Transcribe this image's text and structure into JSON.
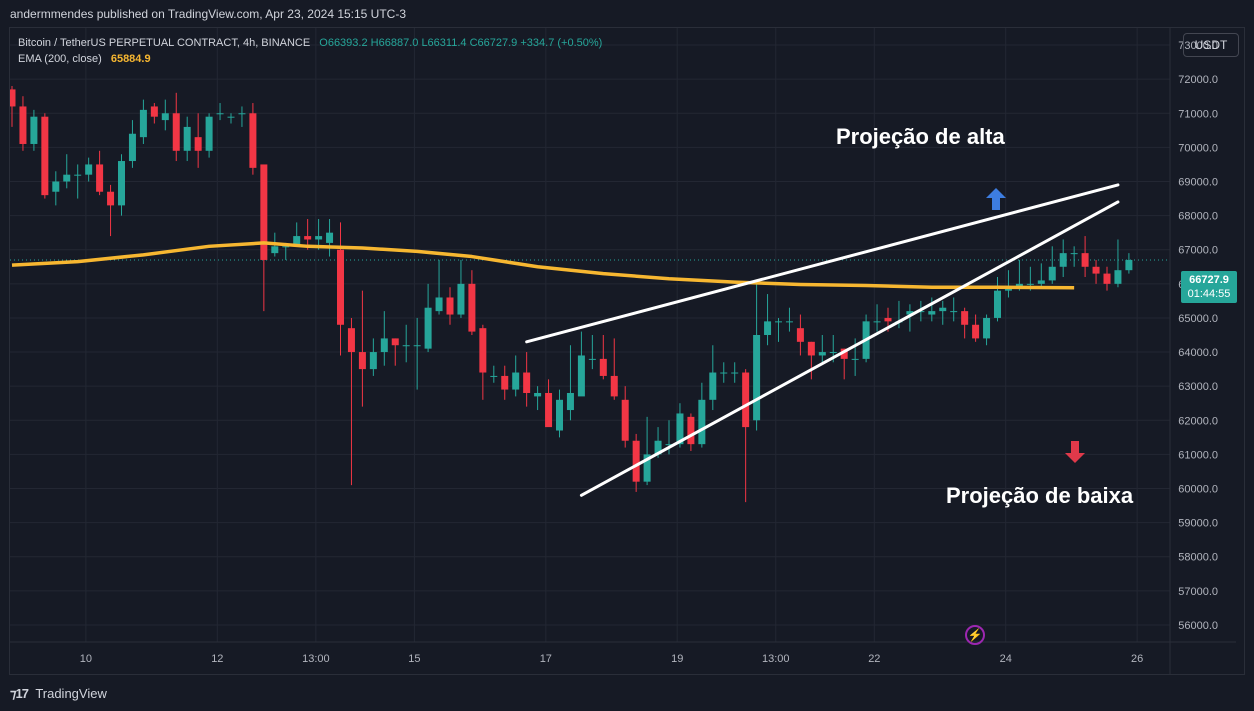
{
  "header": {
    "publisher_line": "andermmendes published on TradingView.com, Apr 23, 2024 15:15 UTC-3"
  },
  "legend": {
    "symbol": "Bitcoin / TetherUS PERPETUAL CONTRACT, 4h, BINANCE",
    "open": "O66393.2",
    "high": "H66887.0",
    "low": "L66311.4",
    "close": "C66727.9",
    "change": "+334.7 (+0.50%)",
    "ema_label": "EMA (200, close)",
    "ema_value": "65884.9"
  },
  "currency_button": "USDT",
  "last_price": {
    "price": "66727.9",
    "countdown": "01:44:55"
  },
  "annotations": {
    "bullish": "Projeção de alta",
    "bearish": "Projeção de baixa"
  },
  "footer": {
    "brand": "TradingView"
  },
  "colors": {
    "up": "#26a69a",
    "down": "#f23645",
    "ema": "#f7b731",
    "background": "#161a25",
    "grid": "#232733",
    "bull_arrow": "#3d7de0",
    "bear_arrow": "#e0394a"
  },
  "chart_data": {
    "type": "candlestick",
    "y_axis": {
      "min": 55500,
      "max": 73500,
      "ticks": [
        "73000.0",
        "72000.0",
        "71000.0",
        "70000.0",
        "69000.0",
        "68000.0",
        "67000.0",
        "66000.0",
        "65000.0",
        "64000.0",
        "63000.0",
        "62000.0",
        "61000.0",
        "60000.0",
        "59000.0",
        "58000.0",
        "57000.0",
        "56000.0"
      ]
    },
    "x_axis": {
      "ticks": [
        {
          "label": "10",
          "index": 6.75
        },
        {
          "label": "12",
          "index": 18.75
        },
        {
          "label": "13:00",
          "index": 27.75
        },
        {
          "label": "15",
          "index": 36.75
        },
        {
          "label": "17",
          "index": 48.75
        },
        {
          "label": "19",
          "index": 60.75
        },
        {
          "label": "13:00",
          "index": 69.75
        },
        {
          "label": "22",
          "index": 78.75
        },
        {
          "label": "24",
          "index": 90.75
        },
        {
          "label": "26",
          "index": 102.75
        }
      ]
    },
    "candles": [
      [
        71700,
        71200,
        71800,
        70600
      ],
      [
        71200,
        70100,
        71500,
        69900
      ],
      [
        70100,
        70900,
        71100,
        69900
      ],
      [
        70900,
        68600,
        71000,
        68500
      ],
      [
        68700,
        69000,
        69300,
        68300
      ],
      [
        69000,
        69200,
        69800,
        68800
      ],
      [
        69200,
        69200,
        69500,
        68500
      ],
      [
        69200,
        69500,
        69700,
        69000
      ],
      [
        69500,
        68700,
        69900,
        68600
      ],
      [
        68700,
        68300,
        68900,
        67400
      ],
      [
        68300,
        69600,
        69800,
        68000
      ],
      [
        69600,
        70400,
        70800,
        69400
      ],
      [
        70300,
        71100,
        71400,
        70100
      ],
      [
        71200,
        70900,
        71300,
        70700
      ],
      [
        70800,
        71000,
        71400,
        70500
      ],
      [
        71000,
        69900,
        71600,
        69600
      ],
      [
        69900,
        70600,
        70900,
        69600
      ],
      [
        70300,
        69900,
        71000,
        69400
      ],
      [
        69900,
        70900,
        71000,
        69700
      ],
      [
        71000,
        71000,
        71300,
        70800
      ],
      [
        70900,
        70900,
        71000,
        70700
      ],
      [
        71000,
        71000,
        71200,
        70600
      ],
      [
        71000,
        69400,
        71300,
        69200
      ],
      [
        69500,
        66700,
        69500,
        65200
      ],
      [
        66900,
        67100,
        67500,
        66800
      ],
      [
        67100,
        67100,
        67200,
        66700
      ],
      [
        67100,
        67400,
        67800,
        67100
      ],
      [
        67400,
        67300,
        67900,
        67000
      ],
      [
        67300,
        67400,
        67900,
        67000
      ],
      [
        67200,
        67500,
        67900,
        66800
      ],
      [
        67000,
        64800,
        67800,
        63900
      ],
      [
        64700,
        64000,
        65000,
        60100
      ],
      [
        64000,
        63500,
        65800,
        62400
      ],
      [
        63500,
        64000,
        64400,
        63300
      ],
      [
        64000,
        64400,
        65200,
        63600
      ],
      [
        64400,
        64200,
        64400,
        63600
      ],
      [
        64200,
        64200,
        64800,
        63700
      ],
      [
        64200,
        64200,
        65000,
        62900
      ],
      [
        64100,
        65300,
        66000,
        64000
      ],
      [
        65200,
        65600,
        66700,
        65100
      ],
      [
        65600,
        65100,
        65900,
        64800
      ],
      [
        65100,
        66000,
        66700,
        65000
      ],
      [
        66000,
        64600,
        66400,
        64500
      ],
      [
        64700,
        63400,
        64800,
        62600
      ],
      [
        63300,
        63300,
        63600,
        63100
      ],
      [
        63300,
        62900,
        63600,
        62600
      ],
      [
        62900,
        63400,
        63900,
        62700
      ],
      [
        63400,
        62800,
        64000,
        62400
      ],
      [
        62700,
        62800,
        63000,
        62300
      ],
      [
        62800,
        61800,
        63200,
        61900
      ],
      [
        61700,
        62600,
        62900,
        61500
      ],
      [
        62300,
        62800,
        64200,
        62000
      ],
      [
        62700,
        63900,
        64600,
        63800
      ],
      [
        63800,
        63800,
        64500,
        63500
      ],
      [
        63800,
        63300,
        64500,
        63200
      ],
      [
        63300,
        62700,
        64400,
        62600
      ],
      [
        62600,
        61400,
        63000,
        61200
      ],
      [
        61400,
        60200,
        61600,
        59900
      ],
      [
        60200,
        61000,
        62100,
        60100
      ],
      [
        61000,
        61400,
        61800,
        60900
      ],
      [
        61300,
        61300,
        62000,
        61000
      ],
      [
        61300,
        62200,
        62500,
        61200
      ],
      [
        62100,
        61300,
        62200,
        61100
      ],
      [
        61300,
        62600,
        63100,
        61200
      ],
      [
        62600,
        63400,
        64200,
        62300
      ],
      [
        63400,
        63400,
        63700,
        63100
      ],
      [
        63400,
        63400,
        63700,
        63100
      ],
      [
        63400,
        61800,
        63500,
        59600
      ],
      [
        62000,
        64500,
        66000,
        61700
      ],
      [
        64500,
        64900,
        65700,
        64200
      ],
      [
        64900,
        64900,
        65000,
        64300
      ],
      [
        64900,
        64900,
        65300,
        64600
      ],
      [
        64700,
        64300,
        65100,
        63900
      ],
      [
        64300,
        63900,
        64300,
        63200
      ],
      [
        63900,
        64000,
        64500,
        63700
      ],
      [
        64000,
        64000,
        64500,
        63700
      ],
      [
        64100,
        63800,
        64100,
        63200
      ],
      [
        63800,
        63800,
        64400,
        63300
      ],
      [
        63800,
        64900,
        65100,
        63700
      ],
      [
        64900,
        64900,
        65400,
        64600
      ],
      [
        65000,
        64900,
        65300,
        64600
      ],
      [
        64900,
        64900,
        65500,
        64700
      ],
      [
        65100,
        65200,
        65400,
        64600
      ],
      [
        65200,
        65200,
        65500,
        64900
      ],
      [
        65100,
        65200,
        65600,
        64900
      ],
      [
        65200,
        65300,
        65500,
        64800
      ],
      [
        65200,
        65200,
        65600,
        64900
      ],
      [
        65200,
        64800,
        65300,
        64400
      ],
      [
        64800,
        64400,
        65100,
        64300
      ],
      [
        64400,
        65000,
        65100,
        64200
      ],
      [
        65000,
        65800,
        66200,
        64900
      ],
      [
        65800,
        65900,
        66400,
        65600
      ],
      [
        65900,
        66000,
        66700,
        65800
      ],
      [
        66000,
        66000,
        66500,
        65800
      ],
      [
        66000,
        66100,
        66600,
        65900
      ],
      [
        66100,
        66500,
        67100,
        66000
      ],
      [
        66500,
        66900,
        67300,
        66200
      ],
      [
        66900,
        66900,
        67100,
        66500
      ],
      [
        66900,
        66500,
        67400,
        66200
      ],
      [
        66500,
        66300,
        66700,
        66000
      ],
      [
        66300,
        66000,
        66500,
        65800
      ],
      [
        66000,
        66400,
        67300,
        65900
      ],
      [
        66400,
        66700,
        66900,
        66300
      ]
    ],
    "ema_200": [
      [
        0,
        66550
      ],
      [
        6,
        66650
      ],
      [
        12,
        66850
      ],
      [
        18,
        67100
      ],
      [
        23,
        67200
      ],
      [
        27,
        67100
      ],
      [
        32,
        67050
      ],
      [
        37,
        66950
      ],
      [
        42,
        66800
      ],
      [
        48,
        66500
      ],
      [
        54,
        66300
      ],
      [
        60,
        66150
      ],
      [
        66,
        66050
      ],
      [
        72,
        65980
      ],
      [
        78,
        65950
      ],
      [
        84,
        65900
      ],
      [
        90,
        65900
      ],
      [
        97,
        65884.9
      ]
    ],
    "trendlines": [
      {
        "from": [
          47,
          64300
        ],
        "to": [
          101,
          68900
        ]
      },
      {
        "from": [
          52,
          59800
        ],
        "to": [
          101,
          68400
        ]
      }
    ]
  }
}
